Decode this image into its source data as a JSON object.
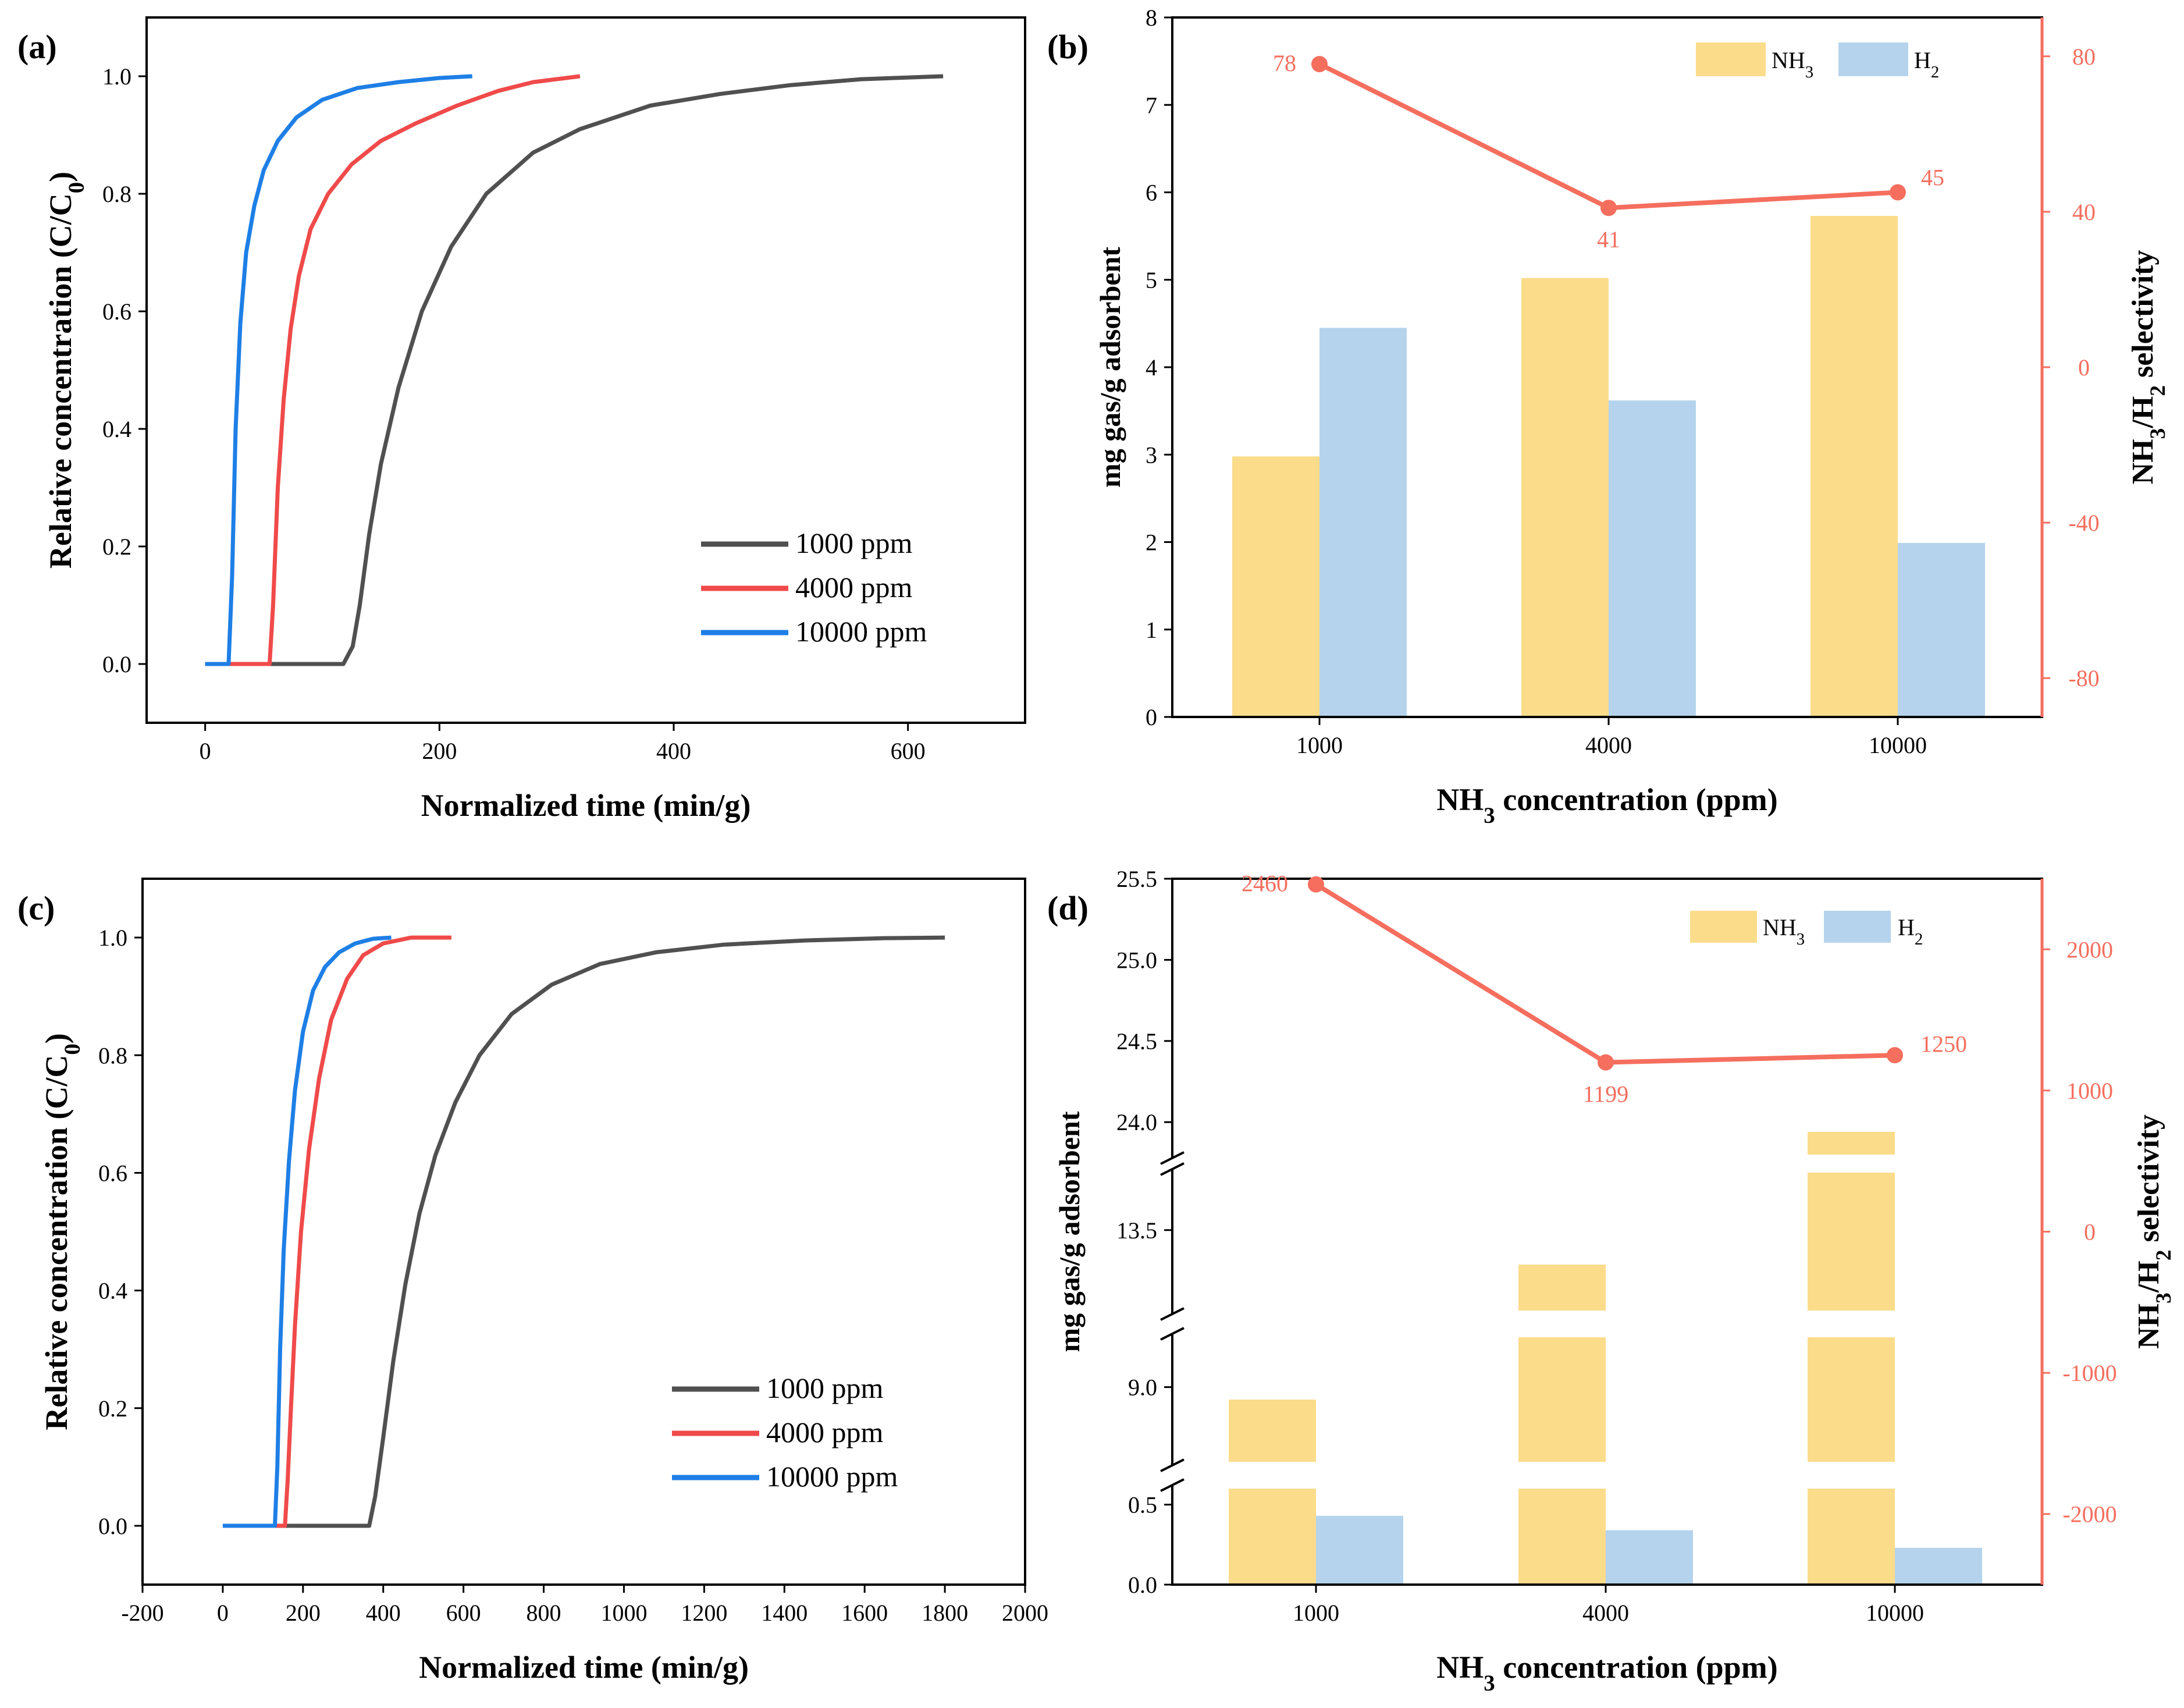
{
  "colors": {
    "black_series": "#505050",
    "red_series": "#f04a4a",
    "blue_series": "#1e7fe6",
    "nh3_bar": "#fbdc8b",
    "h2_bar": "#b5d3ec",
    "selectivity": "#f56e5e"
  },
  "chart_data": [
    {
      "panel": "(a)",
      "type": "line",
      "xlabel": "Normalized time (min/g)",
      "ylabel": "Relative concentration (C/C",
      "ylabel_sub": "0",
      "ylabel_end": ")",
      "xlim": [
        -50,
        700
      ],
      "ylim": [
        -0.1,
        1.1
      ],
      "x_ticks": [
        "0",
        "200",
        "400",
        "600"
      ],
      "x_tick_values": [
        0,
        200,
        400,
        600
      ],
      "y_ticks": [
        "0.0",
        "0.2",
        "0.4",
        "0.6",
        "0.8",
        "1.0"
      ],
      "y_tick_values": [
        0,
        0.2,
        0.4,
        0.6,
        0.8,
        1.0
      ],
      "legend_position": "bottom-right",
      "series": [
        {
          "name": "1000 ppm",
          "color_key": "black_series",
          "x": [
            0,
            118,
            126,
            132,
            140,
            150,
            165,
            185,
            210,
            240,
            280,
            320,
            380,
            440,
            500,
            560,
            630
          ],
          "y": [
            0,
            0,
            0.03,
            0.1,
            0.22,
            0.34,
            0.47,
            0.6,
            0.71,
            0.8,
            0.87,
            0.91,
            0.95,
            0.97,
            0.985,
            0.995,
            1.0
          ]
        },
        {
          "name": "4000 ppm",
          "color_key": "red_series",
          "x": [
            20,
            55,
            58,
            62,
            67,
            73,
            80,
            90,
            105,
            125,
            150,
            180,
            215,
            250,
            280,
            320
          ],
          "y": [
            0,
            0,
            0.1,
            0.3,
            0.45,
            0.57,
            0.66,
            0.74,
            0.8,
            0.85,
            0.89,
            0.92,
            0.95,
            0.975,
            0.99,
            1.0
          ]
        },
        {
          "name": "10000 ppm",
          "color_key": "blue_series",
          "x": [
            0,
            20,
            23,
            26,
            30,
            35,
            42,
            50,
            62,
            78,
            100,
            130,
            165,
            200,
            228
          ],
          "y": [
            0,
            0,
            0.15,
            0.4,
            0.58,
            0.7,
            0.78,
            0.84,
            0.89,
            0.93,
            0.96,
            0.98,
            0.99,
            0.997,
            1.0
          ]
        }
      ]
    },
    {
      "panel": "(b)",
      "type": "bar",
      "xlabel": "NH",
      "xlabel_sub": "3",
      "xlabel_end": " concentration (ppm)",
      "ylabel": "mg gas/g adsorbent",
      "y2label": "NH",
      "y2label_sub": "3",
      "y2label_mid": "/H",
      "y2label_sub2": "2",
      "y2label_end": " selectivity",
      "categories": [
        "1000",
        "4000",
        "10000"
      ],
      "ylim": [
        0,
        8
      ],
      "y_ticks": [
        "0",
        "1",
        "2",
        "3",
        "4",
        "5",
        "6",
        "7",
        "8"
      ],
      "y2lim": [
        -90,
        90
      ],
      "y2_ticks": [
        "-80",
        "-40",
        "0",
        "40",
        "80"
      ],
      "y2_tick_values": [
        -80,
        -40,
        0,
        40,
        80
      ],
      "series": [
        {
          "name": "NH",
          "sub": "3",
          "color_key": "nh3_bar",
          "values": [
            2.98,
            5.02,
            5.73
          ]
        },
        {
          "name": "H",
          "sub": "2",
          "color_key": "h2_bar",
          "values": [
            4.45,
            3.62,
            1.99
          ]
        }
      ],
      "line": {
        "name": "selectivity",
        "values": [
          78,
          41,
          45
        ],
        "labels": [
          "78",
          "41",
          "45"
        ]
      }
    },
    {
      "panel": "(c)",
      "type": "line",
      "xlabel": "Normalized time (min/g)",
      "ylabel": "Relative concentration (C/C",
      "ylabel_sub": "0",
      "ylabel_end": ")",
      "xlim": [
        -200,
        2000
      ],
      "ylim": [
        -0.1,
        1.1
      ],
      "x_ticks": [
        "-200",
        "0",
        "200",
        "400",
        "600",
        "800",
        "1000",
        "1200",
        "1400",
        "1600",
        "1800",
        "2000"
      ],
      "x_tick_values": [
        -200,
        0,
        200,
        400,
        600,
        800,
        1000,
        1200,
        1400,
        1600,
        1800,
        2000
      ],
      "y_ticks": [
        "0.0",
        "0.2",
        "0.4",
        "0.6",
        "0.8",
        "1.0"
      ],
      "y_tick_values": [
        0,
        0.2,
        0.4,
        0.6,
        0.8,
        1.0
      ],
      "legend_position": "bottom-right",
      "series": [
        {
          "name": "1000 ppm",
          "color_key": "black_series",
          "x": [
            130,
            365,
            380,
            400,
            425,
            455,
            490,
            530,
            580,
            640,
            720,
            820,
            940,
            1080,
            1250,
            1450,
            1650,
            1800
          ],
          "y": [
            0,
            0,
            0.05,
            0.15,
            0.28,
            0.41,
            0.53,
            0.63,
            0.72,
            0.8,
            0.87,
            0.92,
            0.955,
            0.975,
            0.988,
            0.995,
            0.999,
            1.0
          ]
        },
        {
          "name": "4000 ppm",
          "color_key": "red_series",
          "x": [
            130,
            155,
            162,
            170,
            180,
            195,
            215,
            240,
            270,
            310,
            350,
            400,
            470,
            570
          ],
          "y": [
            0,
            0,
            0.08,
            0.2,
            0.34,
            0.5,
            0.64,
            0.76,
            0.86,
            0.93,
            0.97,
            0.99,
            1.0,
            1.0
          ]
        },
        {
          "name": "10000 ppm",
          "color_key": "blue_series",
          "x": [
            0,
            130,
            136,
            143,
            152,
            165,
            180,
            200,
            225,
            255,
            290,
            330,
            375,
            420
          ],
          "y": [
            0,
            0,
            0.1,
            0.3,
            0.47,
            0.62,
            0.74,
            0.84,
            0.91,
            0.95,
            0.975,
            0.99,
            0.998,
            1.0
          ]
        }
      ]
    },
    {
      "panel": "(d)",
      "type": "bar",
      "xlabel": "NH",
      "xlabel_sub": "3",
      "xlabel_end": " concentration (ppm)",
      "ylabel": "mg gas/g adsorbent",
      "y2label": "NH",
      "y2label_sub": "3",
      "y2label_mid": "/H",
      "y2label_sub2": "2",
      "y2label_end": " selectivity",
      "categories": [
        "1000",
        "4000",
        "10000"
      ],
      "broken_axis": true,
      "y_segments": [
        [
          0,
          0.6
        ],
        [
          8.4,
          9.4
        ],
        [
          12.8,
          14.0
        ],
        [
          23.8,
          25.5
        ]
      ],
      "y_ticks": [
        "0.0",
        "0.5",
        "9.0",
        "13.5",
        "24.0",
        "24.5",
        "25.0",
        "25.5"
      ],
      "y_tick_values": [
        0,
        0.5,
        9.0,
        13.5,
        24.0,
        24.5,
        25.0,
        25.5
      ],
      "y2lim": [
        -2500,
        2500
      ],
      "y2_ticks": [
        "-2000",
        "-1000",
        "0",
        "1000",
        "2000"
      ],
      "y2_tick_values": [
        -2000,
        -1000,
        0,
        1000,
        2000
      ],
      "series": [
        {
          "name": "NH",
          "sub": "3",
          "color_key": "nh3_bar",
          "values": [
            8.9,
            13.2,
            23.94
          ]
        },
        {
          "name": "H",
          "sub": "2",
          "color_key": "h2_bar",
          "values": [
            0.43,
            0.34,
            0.23
          ]
        }
      ],
      "line": {
        "name": "selectivity",
        "values": [
          2460,
          1199,
          1250
        ],
        "labels": [
          "2460",
          "1199",
          "1250"
        ]
      }
    }
  ]
}
